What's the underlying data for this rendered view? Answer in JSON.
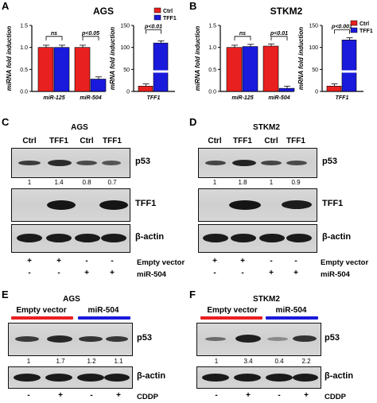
{
  "panels": {
    "A": {
      "label": "A",
      "title": "AGS",
      "legend": [
        "Ctrl",
        "TFF1"
      ],
      "colors": {
        "ctrl": "#e8201f",
        "tff1": "#1a1adc"
      }
    },
    "B": {
      "label": "B",
      "title": "STKM2"
    },
    "C": {
      "label": "C",
      "title": "AGS",
      "lanes": [
        "Ctrl",
        "TFF1",
        "Ctrl",
        "TFF1"
      ],
      "p53_quant": [
        "1",
        "1.4",
        "0.8",
        "0.7"
      ],
      "blot_labels": [
        "p53",
        "TFF1",
        "β-actin"
      ],
      "row_labels": [
        "Empty vector",
        "miR-504"
      ],
      "empty_vector_marks": [
        "+",
        "+",
        "-",
        "-"
      ],
      "mir504_marks": [
        "-",
        "-",
        "+",
        "+"
      ]
    },
    "D": {
      "label": "D",
      "title": "STKM2",
      "lanes": [
        "Ctrl",
        "TFF1",
        "Ctrl",
        "TFF1"
      ],
      "p53_quant": [
        "1",
        "1.8",
        "1",
        "0.9"
      ],
      "blot_labels": [
        "p53",
        "TFF1",
        "β-actin"
      ],
      "row_labels": [
        "Empty vector",
        "miR-504"
      ],
      "empty_vector_marks": [
        "+",
        "+",
        "-",
        "-"
      ],
      "mir504_marks": [
        "-",
        "-",
        "+",
        "+"
      ]
    },
    "E": {
      "label": "E",
      "title": "AGS",
      "groups": [
        "Empty vector",
        "miR-504"
      ],
      "p53_quant": [
        "1",
        "1.7",
        "1.2",
        "1.1"
      ],
      "blot_labels": [
        "p53",
        "β-actin"
      ],
      "row_label": "CDDP",
      "cddp_marks": [
        "-",
        "+",
        "-",
        "+"
      ]
    },
    "F": {
      "label": "F",
      "title": "STKM2",
      "groups": [
        "Empty vector",
        "miR-504"
      ],
      "p53_quant": [
        "1",
        "3.4",
        "0.4",
        "2.2"
      ],
      "blot_labels": [
        "p53",
        "β-actin"
      ],
      "row_label": "CDDP",
      "cddp_marks": [
        "-",
        "+",
        "-",
        "+"
      ]
    }
  },
  "chart_data": [
    {
      "type": "bar",
      "panel": "A",
      "title": "AGS",
      "categories": [
        "miR-125",
        "miR-504"
      ],
      "series": [
        {
          "name": "Ctrl",
          "values": [
            1.0,
            1.0
          ]
        },
        {
          "name": "TFF1",
          "values": [
            1.0,
            0.28
          ]
        }
      ],
      "ylabel": "miRNA fold induction",
      "ylim": [
        0.0,
        1.5
      ],
      "yticks": [
        "0.0",
        "0.5",
        "1.0",
        "1.5"
      ],
      "annotations": [
        "ns",
        "p<0.05"
      ]
    },
    {
      "type": "bar",
      "panel": "A",
      "title": "AGS",
      "categories": [
        "TFF1"
      ],
      "series": [
        {
          "name": "Ctrl",
          "values": [
            1
          ]
        },
        {
          "name": "TFF1",
          "values": [
            110
          ]
        }
      ],
      "ylabel": "mRNA fold induction",
      "ylim": [
        0,
        150
      ],
      "yticks": [
        "0",
        "50",
        "100",
        "150"
      ],
      "axis_break": true,
      "annotations": [
        "p<0.01"
      ],
      "legend": [
        "Ctrl",
        "TFF1"
      ]
    },
    {
      "type": "bar",
      "panel": "B",
      "title": "STKM2",
      "categories": [
        "miR-125",
        "miR-504"
      ],
      "series": [
        {
          "name": "Ctrl",
          "values": [
            1.0,
            1.03
          ]
        },
        {
          "name": "TFF1",
          "values": [
            1.02,
            0.07
          ]
        }
      ],
      "ylabel": "miRNA fold induction",
      "ylim": [
        0.0,
        1.5
      ],
      "yticks": [
        "0.0",
        "0.5",
        "1.0",
        "1.5"
      ],
      "annotations": [
        "ns",
        "p<0.01"
      ]
    },
    {
      "type": "bar",
      "panel": "B",
      "title": "STKM2",
      "categories": [
        "TFF1"
      ],
      "series": [
        {
          "name": "Ctrl",
          "values": [
            1
          ]
        },
        {
          "name": "TFF1",
          "values": [
            117
          ]
        }
      ],
      "ylabel": "mRNA fold induction",
      "ylim": [
        0,
        150
      ],
      "yticks": [
        "0",
        "50",
        "100",
        "150"
      ],
      "axis_break": true,
      "annotations": [
        "p<0.001"
      ],
      "legend": [
        "Ctrl",
        "TFF1"
      ]
    }
  ]
}
